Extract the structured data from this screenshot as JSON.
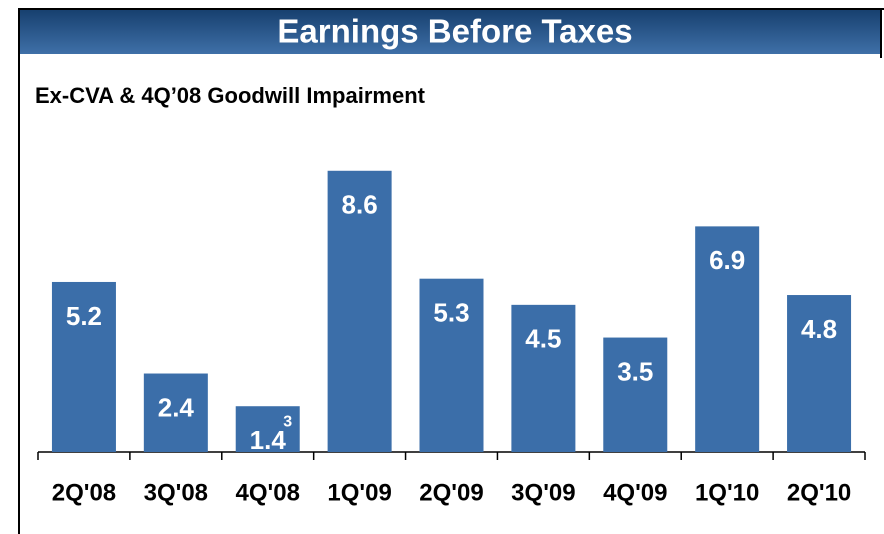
{
  "chart_data": {
    "type": "bar",
    "title": "Earnings Before Taxes",
    "subtitle": "Ex-CVA & 4Q’08 Goodwill Impairment",
    "categories": [
      "2Q'08",
      "3Q'08",
      "4Q'08",
      "1Q'09",
      "2Q'09",
      "3Q'09",
      "4Q'09",
      "1Q'10",
      "2Q'10"
    ],
    "values": [
      5.2,
      2.4,
      1.4,
      8.6,
      5.3,
      4.5,
      3.5,
      6.9,
      4.8
    ],
    "annotations": [
      {
        "text": "3",
        "index": 2
      }
    ],
    "color": "#3b6ea9",
    "ylim": [
      0,
      10
    ]
  }
}
